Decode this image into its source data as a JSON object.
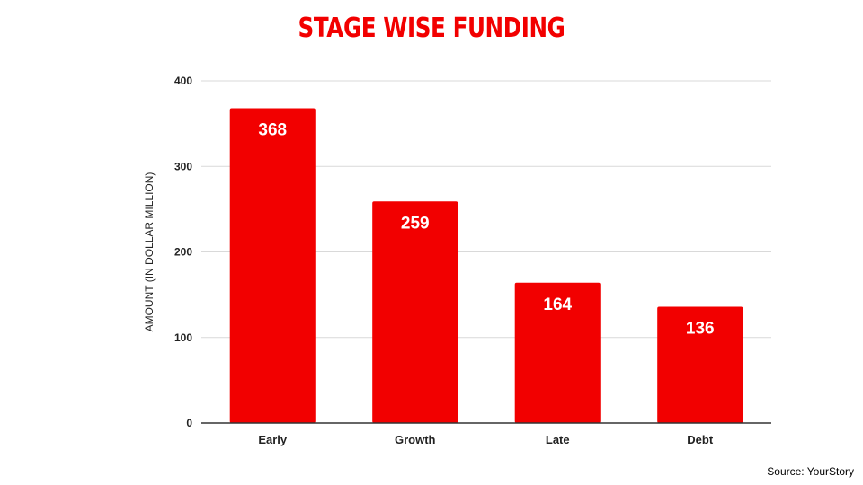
{
  "chart_data": {
    "type": "bar",
    "title": "STAGE WISE FUNDING",
    "xlabel": "",
    "ylabel": "AMOUNT (IN DOLLAR MILLION)",
    "categories": [
      "Early",
      "Growth",
      "Late",
      "Debt"
    ],
    "values": [
      368,
      259,
      164,
      136
    ],
    "value_labels": [
      "368",
      "259",
      "164",
      "136"
    ],
    "ylim": [
      0,
      400
    ],
    "yticks": [
      0,
      100,
      200,
      300,
      400
    ],
    "ytick_labels": [
      "0",
      "100",
      "200",
      "300",
      "400"
    ],
    "grid": true,
    "legend": "none",
    "bar_color": "#f20000",
    "title_color": "#f20000",
    "data_label_color": "#ffffff",
    "gridline_color": "#d9d9d9",
    "axis_color": "#333333"
  },
  "source": "Source: YourStory"
}
